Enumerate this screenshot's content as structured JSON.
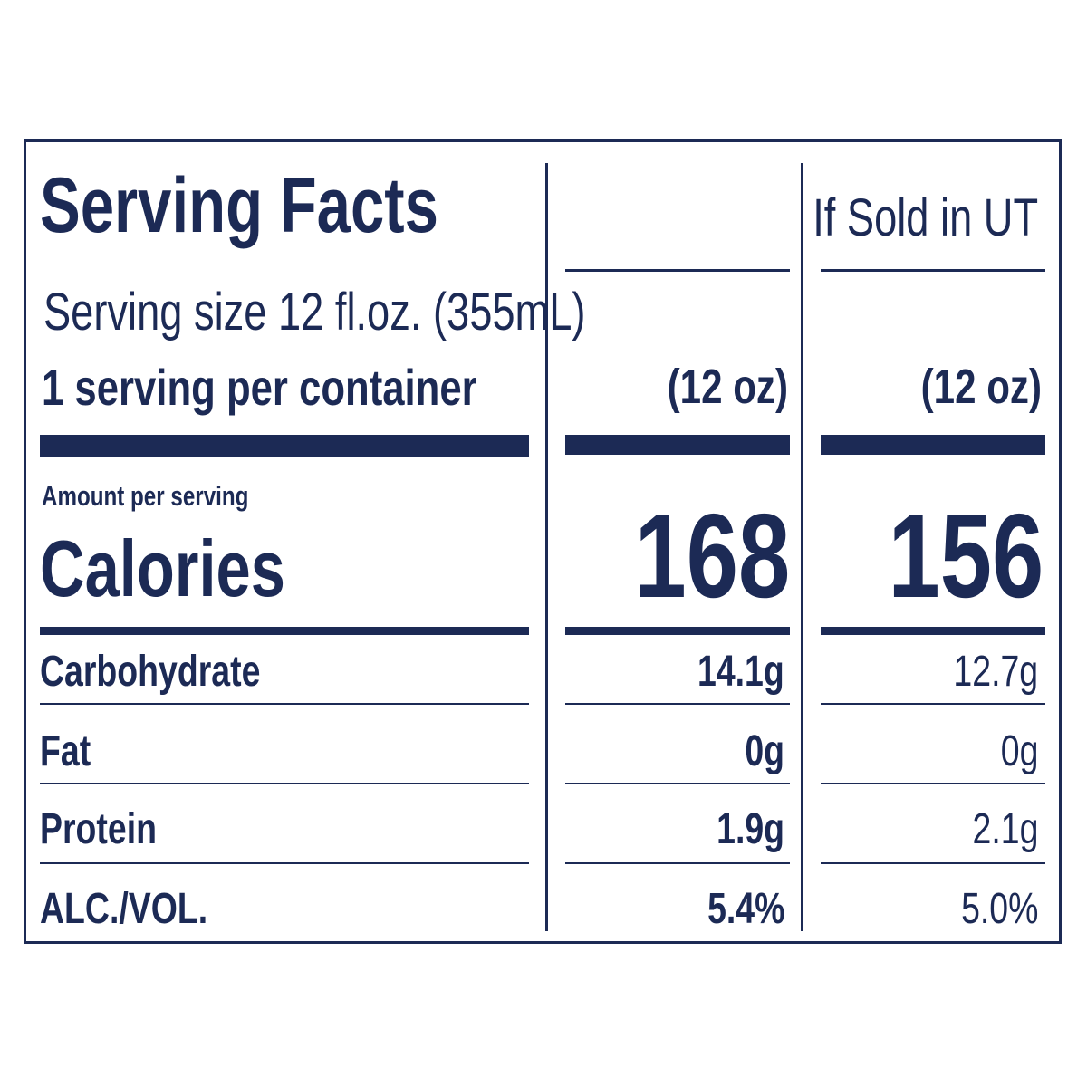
{
  "title": "Serving Facts",
  "column_header_2": "If Sold in UT",
  "serving_size": "Serving size 12 fl.oz. (355mL)",
  "servings_per_container": "1 serving per container",
  "columns": [
    {
      "size": "(12 oz)",
      "calories": "168"
    },
    {
      "size": "(12 oz)",
      "calories": "156"
    }
  ],
  "amount_per_serving": "Amount per serving",
  "calories_label": "Calories",
  "nutrients": [
    {
      "label": "Carbohydrate",
      "values": [
        "14.1g",
        "12.7g"
      ]
    },
    {
      "label": "Fat",
      "values": [
        "0g",
        "0g"
      ]
    },
    {
      "label": "Protein",
      "values": [
        "1.9g",
        "2.1g"
      ]
    },
    {
      "label": "ALC./VOL.",
      "values": [
        "5.4%",
        "5.0%"
      ]
    }
  ],
  "colors": {
    "ink": "#1c2a55",
    "background": "#ffffff"
  }
}
